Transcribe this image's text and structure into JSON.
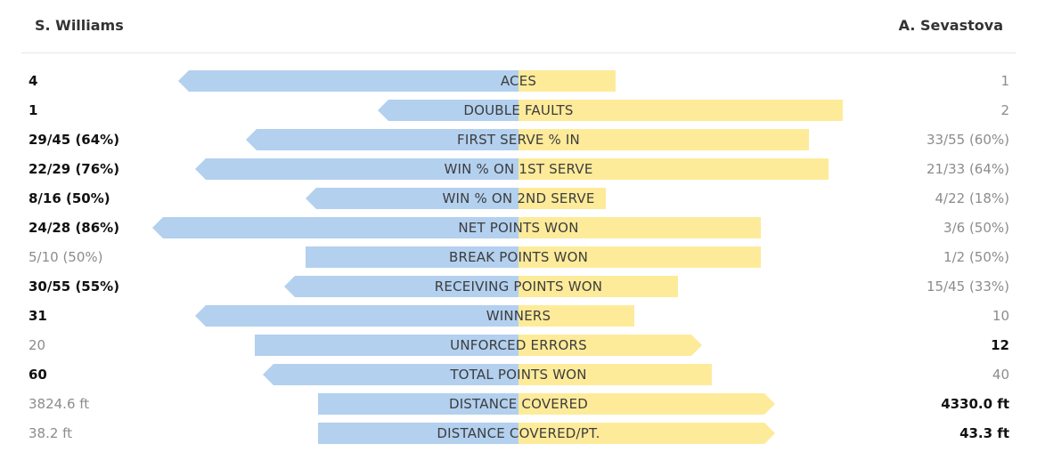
{
  "players": {
    "left": "S. Williams",
    "right": "A. Sevastova"
  },
  "colors": {
    "left_bar": "#b3d0ef",
    "right_bar": "#fdeb9a",
    "winner_text": "#111111",
    "loser_text": "#8c8c8c"
  },
  "stats": [
    {
      "label": "ACES",
      "left": "4",
      "right": "1",
      "left_share": 0.8,
      "right_share": 0.2,
      "leader": "left"
    },
    {
      "label": "DOUBLE FAULTS",
      "left": "1",
      "right": "2",
      "left_share": 0.33,
      "right_share": 0.67,
      "leader": "left"
    },
    {
      "label": "FIRST SERVE % IN",
      "left": "29/45 (64%)",
      "right": "33/55 (60%)",
      "left_share": 0.64,
      "right_share": 0.6,
      "leader": "left"
    },
    {
      "label": "WIN % ON 1ST SERVE",
      "left": "22/29 (76%)",
      "right": "21/33 (64%)",
      "left_share": 0.76,
      "right_share": 0.64,
      "leader": "left"
    },
    {
      "label": "WIN % ON 2ND SERVE",
      "left": "8/16 (50%)",
      "right": "4/22 (18%)",
      "left_share": 0.5,
      "right_share": 0.18,
      "leader": "left"
    },
    {
      "label": "NET POINTS WON",
      "left": "24/28 (86%)",
      "right": "3/6 (50%)",
      "left_share": 0.86,
      "right_share": 0.5,
      "leader": "left"
    },
    {
      "label": "BREAK POINTS WON",
      "left": "5/10 (50%)",
      "right": "1/2 (50%)",
      "left_share": 0.5,
      "right_share": 0.5,
      "leader": "none"
    },
    {
      "label": "RECEIVING POINTS WON",
      "left": "30/55 (55%)",
      "right": "15/45 (33%)",
      "left_share": 0.55,
      "right_share": 0.33,
      "leader": "left"
    },
    {
      "label": "WINNERS",
      "left": "31",
      "right": "10",
      "left_share": 0.76,
      "right_share": 0.24,
      "leader": "left"
    },
    {
      "label": "UNFORCED ERRORS",
      "left": "20",
      "right": "12",
      "left_share": 0.62,
      "right_share": 0.38,
      "leader": "right"
    },
    {
      "label": "TOTAL POINTS WON",
      "left": "60",
      "right": "40",
      "left_share": 0.6,
      "right_share": 0.4,
      "leader": "left"
    },
    {
      "label": "DISTANCE COVERED",
      "left": "3824.6 ft",
      "right": "4330.0 ft",
      "left_share": 0.47,
      "right_share": 0.53,
      "leader": "right"
    },
    {
      "label": "DISTANCE COVERED/PT.",
      "left": "38.2 ft",
      "right": "43.3 ft",
      "left_share": 0.47,
      "right_share": 0.53,
      "leader": "right"
    }
  ]
}
